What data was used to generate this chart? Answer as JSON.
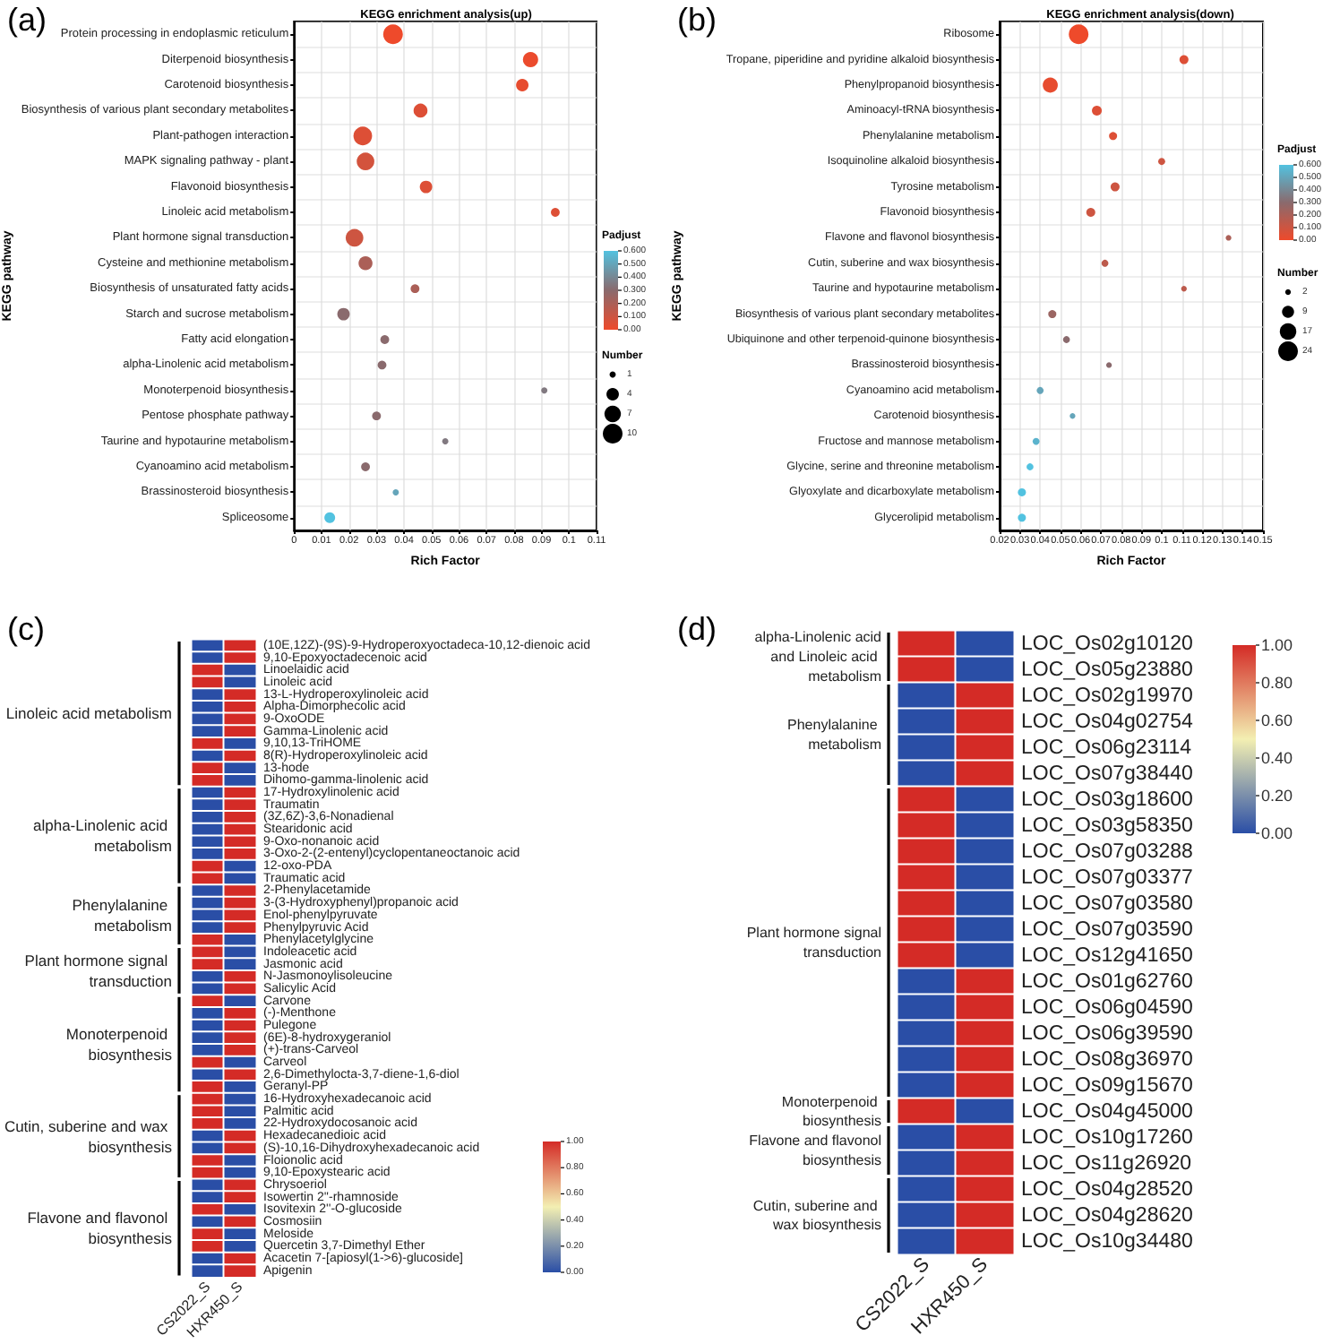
{
  "chart_data": [
    {
      "type": "bubble",
      "title": "KEGG enrichment analysis(up)",
      "xlabel": "Rich Factor",
      "ylabel": "KEGG pathway",
      "clabel": "Padjust",
      "legend_title": "Number",
      "orientation": "horizontal",
      "annotations": [
        "(a)"
      ],
      "categories": [
        "Protein processing in endoplasmic reticulum",
        "Diterpenoid biosynthesis",
        "Carotenoid biosynthesis",
        "Biosynthesis of various plant secondary metabolites",
        "Plant-pathogen interaction",
        "MAPK signaling pathway - plant",
        "Flavonoid biosynthesis",
        "Linoleic acid metabolism",
        "Plant hormone signal transduction",
        "Cysteine and methionine metabolism",
        "Biosynthesis of unsaturated fatty acids",
        "Starch and sucrose metabolism",
        "Fatty acid elongation",
        "alpha-Linolenic acid metabolism",
        "Monoterpenoid biosynthesis",
        "Pentose phosphate pathway",
        "Taurine and hypotaurine metabolism",
        "Cyanoamino acid metabolism",
        "Brassinosteroid biosynthesis",
        "Spliceosome"
      ],
      "values": [
        0.036,
        0.086,
        0.083,
        0.046,
        0.025,
        0.026,
        0.048,
        0.095,
        0.022,
        0.026,
        0.044,
        0.018,
        0.033,
        0.032,
        0.091,
        0.03,
        0.055,
        0.026,
        0.037,
        0.013
      ],
      "sizes": [
        10,
        6,
        4,
        5,
        9,
        8,
        4,
        2,
        8,
        5,
        2,
        4,
        2,
        2,
        1,
        2,
        1,
        2,
        1,
        3
      ],
      "cvalues": [
        0.0,
        0.01,
        0.02,
        0.05,
        0.05,
        0.08,
        0.05,
        0.05,
        0.1,
        0.2,
        0.2,
        0.3,
        0.3,
        0.3,
        0.35,
        0.3,
        0.35,
        0.3,
        0.5,
        0.6
      ],
      "size_legend": [
        1,
        4,
        7,
        10
      ],
      "xlim": [
        0,
        0.11
      ],
      "xticks": [
        0,
        0.01,
        0.02,
        0.03,
        0.04,
        0.05,
        0.06,
        0.07,
        0.08,
        0.09,
        0.1,
        0.11
      ],
      "clim": [
        0,
        0.6
      ],
      "cticks": [
        {
          "value": 0,
          "label": "0.00"
        },
        {
          "value": 0.1,
          "label": "0.100"
        },
        {
          "value": 0.2,
          "label": "0.200"
        },
        {
          "value": 0.3,
          "label": "0.300"
        },
        {
          "value": 0.4,
          "label": "0.400"
        },
        {
          "value": 0.5,
          "label": "0.500"
        },
        {
          "value": 0.6,
          "label": "0.600"
        }
      ],
      "grid": true
    },
    {
      "type": "bubble",
      "title": "KEGG enrichment analysis(down)",
      "xlabel": "Rich Factor",
      "ylabel": "KEGG pathway",
      "clabel": "Padjust",
      "legend_title": "Number",
      "orientation": "horizontal",
      "annotations": [
        "(b)"
      ],
      "categories": [
        "Ribosome",
        "Tropane, piperidine and pyridine alkaloid biosynthesis",
        "Phenylpropanoid biosynthesis",
        "Aminoacyl-tRNA biosynthesis",
        "Phenylalanine metabolism",
        "Isoquinoline alkaloid biosynthesis",
        "Tyrosine metabolism",
        "Flavonoid biosynthesis",
        "Flavone and flavonol biosynthesis",
        "Cutin, suberine and wax biosynthesis",
        "Taurine and hypotaurine metabolism",
        "Biosynthesis of various plant secondary metabolites",
        "Ubiquinone and other terpenoid-quinone biosynthesis",
        "Brassinosteroid biosynthesis",
        "Cyanoamino acid metabolism",
        "Carotenoid biosynthesis",
        "Fructose and mannose metabolism",
        "Glycine, serine and threonine metabolism",
        "Glyoxylate and dicarboxylate metabolism",
        "Glycerolipid metabolism"
      ],
      "values": [
        0.059,
        0.111,
        0.045,
        0.068,
        0.076,
        0.1,
        0.077,
        0.065,
        0.133,
        0.072,
        0.111,
        0.046,
        0.053,
        0.074,
        0.04,
        0.056,
        0.038,
        0.035,
        0.031,
        0.031
      ],
      "sizes": [
        24,
        5,
        14,
        6,
        4,
        3,
        5,
        5,
        2,
        3,
        2,
        4,
        3,
        2,
        3,
        2,
        3,
        3,
        4,
        4
      ],
      "cvalues": [
        0.0,
        0.05,
        0.02,
        0.05,
        0.05,
        0.1,
        0.1,
        0.1,
        0.2,
        0.15,
        0.15,
        0.25,
        0.3,
        0.3,
        0.5,
        0.5,
        0.55,
        0.6,
        0.6,
        0.6
      ],
      "size_legend": [
        2,
        9,
        17,
        24
      ],
      "xlim": [
        0.02,
        0.15
      ],
      "xticks": [
        0.02,
        0.03,
        0.04,
        0.05,
        0.06,
        0.07,
        0.08,
        0.09,
        0.1,
        0.11,
        0.12,
        0.13,
        0.14,
        0.15
      ],
      "clim": [
        0,
        0.6
      ],
      "cticks": [
        {
          "value": 0,
          "label": "0.00"
        },
        {
          "value": 0.1,
          "label": "0.100"
        },
        {
          "value": 0.2,
          "label": "0.200"
        },
        {
          "value": 0.3,
          "label": "0.300"
        },
        {
          "value": 0.4,
          "label": "0.400"
        },
        {
          "value": 0.5,
          "label": "0.500"
        },
        {
          "value": 0.6,
          "label": "0.600"
        }
      ],
      "grid": true
    },
    {
      "type": "heatmap",
      "annotations": [
        "(c)",
        "Linoleic acid metabolism",
        "alpha-Linolenic acid metabolism",
        "Phenylalanine metabolism",
        "Plant hormone signal transduction",
        "Monoterpenoid biosynthesis",
        "Cutin, suberine and wax biosynthesis",
        "Flavone and flavonol biosynthesis"
      ],
      "categories": [
        "CS2022_S",
        "HXR450_S"
      ],
      "y_categories": [
        "(10E,12Z)-(9S)-9-Hydroperoxyoctadeca-10,12-dienoic acid",
        "9,10-Epoxyoctadecenoic acid",
        "Linoelaidic acid",
        "Linoleic acid",
        "13-L-Hydroperoxylinoleic acid",
        "Alpha-Dimorphecolic acid",
        "9-OxoODE",
        "Gamma-Linolenic acid",
        "9,10,13-TriHOME",
        "8(R)-Hydroperoxylinoleic acid",
        "13-hode",
        "Dihomo-gamma-linolenic acid",
        "17-Hydroxylinolenic acid",
        "Traumatin",
        "(3Z,6Z)-3,6-Nonadienal",
        "Stearidonic acid",
        "9-Oxo-nonanoic acid",
        "3-Oxo-2-(2-entenyl)cyclopentaneoctanoic acid",
        "12-oxo-PDA",
        "Traumatic acid",
        "2-Phenylacetamide",
        "3-(3-Hydroxyphenyl)propanoic acid",
        "Enol-phenylpyruvate",
        "Phenylpyruvic Acid",
        "Phenylacetylglycine",
        "Indoleacetic acid",
        "Jasmonic acid",
        "N-Jasmonoylisoleucine",
        "Salicylic Acid",
        "Carvone",
        "(-)-Menthone",
        "Pulegone",
        "(6E)-8-hydroxygeraniol",
        "(+)-trans-Carveol",
        "Carveol",
        "2,6-Dimethylocta-3,7-diene-1,6-diol",
        "Geranyl-PP",
        "16-Hydroxyhexadecanoic acid",
        "Palmitic acid",
        "22-Hydroxydocosanoic acid",
        "Hexadecanedioic acid",
        "(S)-10,16-Dihydroxyhexadecanoic acid",
        "Floionolic acid",
        "9,10-Epoxystearic acid",
        "Chrysoeriol",
        "Isowertin 2''-rhamnoside",
        "Isovitexin 2''-O-glucoside",
        "Cosmosiin",
        "Meloside",
        "Quercetin 3,7-Dimethyl Ether",
        "Acacetin 7-[apiosyl(1->6)-glucoside]",
        "Apigenin"
      ],
      "cells": [
        [
          0,
          1
        ],
        [
          0,
          1
        ],
        [
          1,
          0
        ],
        [
          1,
          0
        ],
        [
          0,
          1
        ],
        [
          0,
          1
        ],
        [
          0,
          1
        ],
        [
          0,
          1
        ],
        [
          1,
          0
        ],
        [
          0,
          1
        ],
        [
          1,
          0
        ],
        [
          1,
          0
        ],
        [
          0,
          1
        ],
        [
          0,
          1
        ],
        [
          0,
          1
        ],
        [
          0,
          1
        ],
        [
          0,
          1
        ],
        [
          0,
          1
        ],
        [
          1,
          0
        ],
        [
          1,
          0
        ],
        [
          0,
          1
        ],
        [
          0,
          1
        ],
        [
          0,
          1
        ],
        [
          0,
          1
        ],
        [
          1,
          0
        ],
        [
          1,
          0
        ],
        [
          1,
          0
        ],
        [
          0,
          1
        ],
        [
          0,
          1
        ],
        [
          1,
          0
        ],
        [
          0,
          1
        ],
        [
          0,
          1
        ],
        [
          0,
          1
        ],
        [
          0,
          1
        ],
        [
          1,
          0
        ],
        [
          0,
          1
        ],
        [
          1,
          0
        ],
        [
          1,
          0
        ],
        [
          1,
          0
        ],
        [
          1,
          0
        ],
        [
          0,
          1
        ],
        [
          0,
          1
        ],
        [
          1,
          0
        ],
        [
          1,
          0
        ],
        [
          0,
          1
        ],
        [
          0,
          1
        ],
        [
          1,
          0
        ],
        [
          0,
          1
        ],
        [
          1,
          0
        ],
        [
          1,
          0
        ],
        [
          0,
          1
        ],
        [
          0,
          1
        ]
      ],
      "clim": [
        0,
        1
      ],
      "cticks": [
        {
          "value": 0,
          "label": "0.00"
        },
        {
          "value": 0.2,
          "label": "0.20"
        },
        {
          "value": 0.4,
          "label": "0.40"
        },
        {
          "value": 0.6,
          "label": "0.60"
        },
        {
          "value": 0.8,
          "label": "0.80"
        },
        {
          "value": 1,
          "label": "1.00"
        }
      ],
      "grid": false
    },
    {
      "type": "heatmap",
      "annotations": [
        "(d)",
        "alpha-Linolenic acid and Linoleic acid metabolism",
        "Phenylalanine metabolism",
        "Plant hormone signal transduction",
        "Monoterpenoid biosynthesis",
        "Flavone and flavonol biosynthesis",
        "Cutin, suberine and wax biosynthesis"
      ],
      "categories": [
        "CS2022_S",
        "HXR450_S"
      ],
      "y_categories": [
        "LOC_Os02g10120",
        "LOC_Os05g23880",
        "LOC_Os02g19970",
        "LOC_Os04g02754",
        "LOC_Os06g23114",
        "LOC_Os07g38440",
        "LOC_Os03g18600",
        "LOC_Os03g58350",
        "LOC_Os07g03288",
        "LOC_Os07g03377",
        "LOC_Os07g03580",
        "LOC_Os07g03590",
        "LOC_Os12g41650",
        "LOC_Os01g62760",
        "LOC_Os06g04590",
        "LOC_Os06g39590",
        "LOC_Os08g36970",
        "LOC_Os09g15670",
        "LOC_Os04g45000",
        "LOC_Os10g17260",
        "LOC_Os11g26920",
        "LOC_Os04g28520",
        "LOC_Os04g28620",
        "LOC_Os10g34480"
      ],
      "cells": [
        [
          1,
          0
        ],
        [
          1,
          0
        ],
        [
          0,
          1
        ],
        [
          0,
          1
        ],
        [
          0,
          1
        ],
        [
          0,
          1
        ],
        [
          1,
          0
        ],
        [
          1,
          0
        ],
        [
          1,
          0
        ],
        [
          1,
          0
        ],
        [
          1,
          0
        ],
        [
          1,
          0
        ],
        [
          1,
          0
        ],
        [
          0,
          1
        ],
        [
          0,
          1
        ],
        [
          0,
          1
        ],
        [
          0,
          1
        ],
        [
          0,
          1
        ],
        [
          1,
          0
        ],
        [
          0,
          1
        ],
        [
          0,
          1
        ],
        [
          0,
          1
        ],
        [
          0,
          1
        ],
        [
          0,
          1
        ]
      ],
      "clim": [
        0,
        1
      ],
      "cticks": [
        {
          "value": 0,
          "label": "0.00"
        },
        {
          "value": 0.2,
          "label": "0.20"
        },
        {
          "value": 0.4,
          "label": "0.40"
        },
        {
          "value": 0.6,
          "label": "0.60"
        },
        {
          "value": 0.8,
          "label": "0.80"
        },
        {
          "value": 1,
          "label": "1.00"
        }
      ],
      "grid": false
    }
  ]
}
